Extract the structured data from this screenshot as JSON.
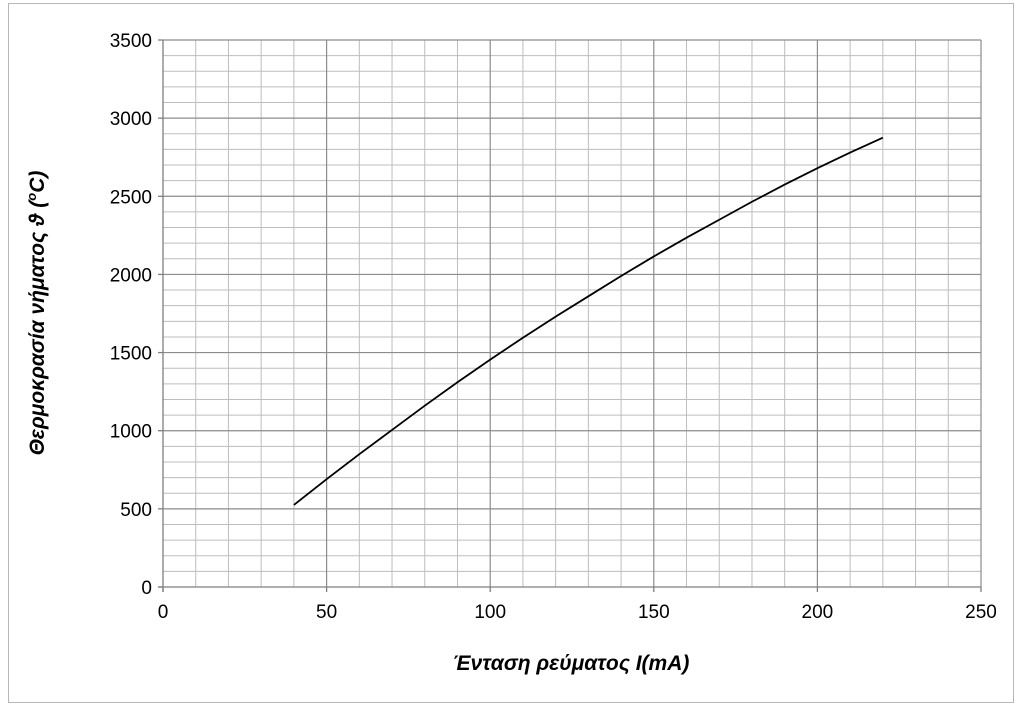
{
  "chart_data": {
    "type": "line",
    "title": "",
    "xlabel": "Ένταση ρεύματος  I(mA)",
    "ylabel_main": "Θερμοκρασία νήματος  ϑ (",
    "ylabel_sup": "o",
    "ylabel_end": "C)",
    "xlim": [
      0,
      250
    ],
    "ylim": [
      0,
      3500
    ],
    "x_ticks": [
      0,
      50,
      100,
      150,
      200,
      250
    ],
    "y_ticks": [
      0,
      500,
      1000,
      1500,
      2000,
      2500,
      3000,
      3500
    ],
    "x_tick_labels": [
      "0",
      "50",
      "100",
      "150",
      "200",
      "250"
    ],
    "y_tick_labels": [
      "0",
      "500",
      "1000",
      "1500",
      "2000",
      "2500",
      "3000",
      "3500"
    ],
    "x_minor_step": 10,
    "y_minor_step": 100,
    "grid": true,
    "legend": "none",
    "colors": {
      "line": "#000000",
      "major_grid": "#8c8c8c",
      "minor_grid": "#bdbdbd"
    },
    "series": [
      {
        "x": [
          40,
          50,
          60,
          70,
          80,
          90,
          100,
          110,
          120,
          130,
          140,
          150,
          160,
          170,
          180,
          190,
          200,
          210,
          220
        ],
        "values": [
          525,
          690,
          850,
          1005,
          1160,
          1310,
          1455,
          1595,
          1730,
          1860,
          1990,
          2115,
          2235,
          2350,
          2465,
          2575,
          2680,
          2780,
          2875
        ]
      }
    ]
  }
}
